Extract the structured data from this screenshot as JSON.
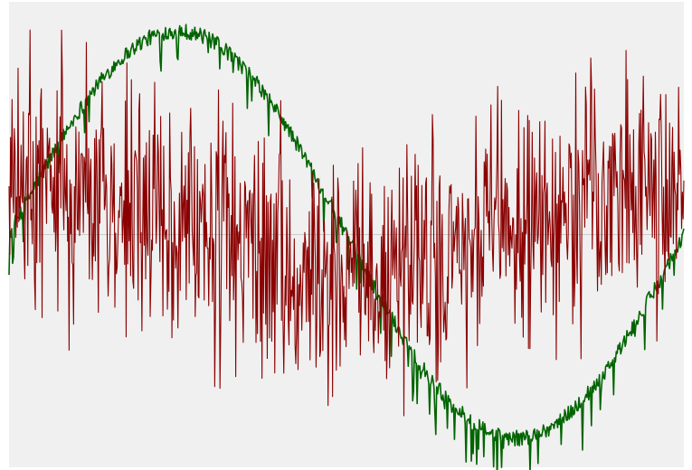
{
  "chart_data": {
    "type": "line",
    "title": "",
    "xlabel": "",
    "ylabel": "",
    "grid": false,
    "legend": "none",
    "xlim": [
      0,
      1
    ],
    "ylim": [
      -1.2,
      1.2
    ],
    "zero_line": true,
    "colors": {
      "plot_background": "#f0f0f0",
      "frame": "#ffffff",
      "zero_line": "#cccccc"
    },
    "series": [
      {
        "key": "sine",
        "color": "#006400",
        "shape": "sine",
        "amplitude": 1.05,
        "cycles": 1,
        "offset": 0,
        "noise_amplitude": 0.04,
        "downward_spikes": 0.18,
        "points": 760
      },
      {
        "key": "noisy",
        "color": "#8b0000",
        "shape": "cosine",
        "amplitude": 0.25,
        "cycles": 1,
        "offset": 0.03,
        "noise_amplitude": 0.5,
        "downward_spikes": 0,
        "points": 900
      }
    ]
  }
}
